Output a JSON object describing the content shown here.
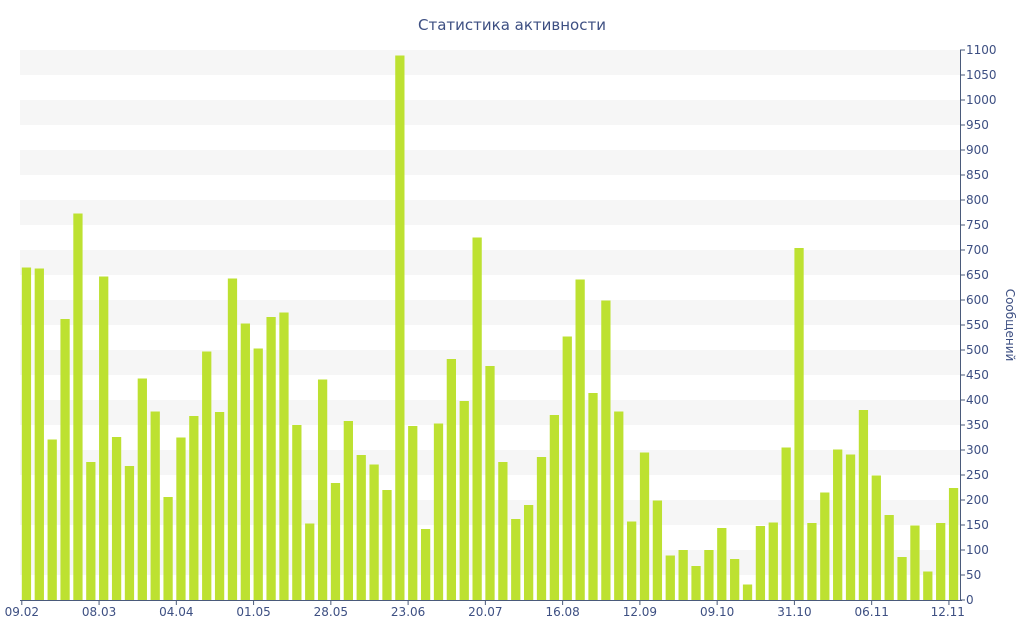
{
  "chart_data": {
    "type": "bar",
    "title": "Статистика активности",
    "xlabel": "",
    "ylabel": "Сообщений",
    "ylim": [
      0,
      1100
    ],
    "y_tick_step": 50,
    "grid": true,
    "x_tick_labels": [
      {
        "index": 0,
        "label": "09.02"
      },
      {
        "index": 6,
        "label": "08.03"
      },
      {
        "index": 12,
        "label": "04.04"
      },
      {
        "index": 18,
        "label": "01.05"
      },
      {
        "index": 24,
        "label": "28.05"
      },
      {
        "index": 30,
        "label": "23.06"
      },
      {
        "index": 36,
        "label": "20.07"
      },
      {
        "index": 42,
        "label": "16.08"
      },
      {
        "index": 48,
        "label": "12.09"
      },
      {
        "index": 54,
        "label": "09.10"
      },
      {
        "index": 60,
        "label": "31.10"
      },
      {
        "index": 66,
        "label": "06.11"
      },
      {
        "index": 72,
        "label": "12.11"
      }
    ],
    "values": [
      665,
      663,
      321,
      562,
      773,
      276,
      647,
      326,
      268,
      443,
      377,
      206,
      325,
      368,
      497,
      376,
      643,
      553,
      503,
      566,
      575,
      350,
      153,
      441,
      234,
      358,
      290,
      271,
      220,
      1089,
      348,
      142,
      353,
      482,
      398,
      725,
      468,
      276,
      162,
      190,
      286,
      370,
      527,
      641,
      414,
      599,
      377,
      157,
      295,
      199,
      89,
      100,
      68,
      100,
      144,
      82,
      31,
      148,
      155,
      305,
      704,
      154,
      215,
      301,
      291,
      380,
      249,
      170,
      86,
      149,
      57,
      154,
      224
    ]
  },
  "colors": {
    "bar": "#bde131",
    "band": "#f6f6f6",
    "axis": "#4a5a7a",
    "text": "#3d4f82"
  }
}
